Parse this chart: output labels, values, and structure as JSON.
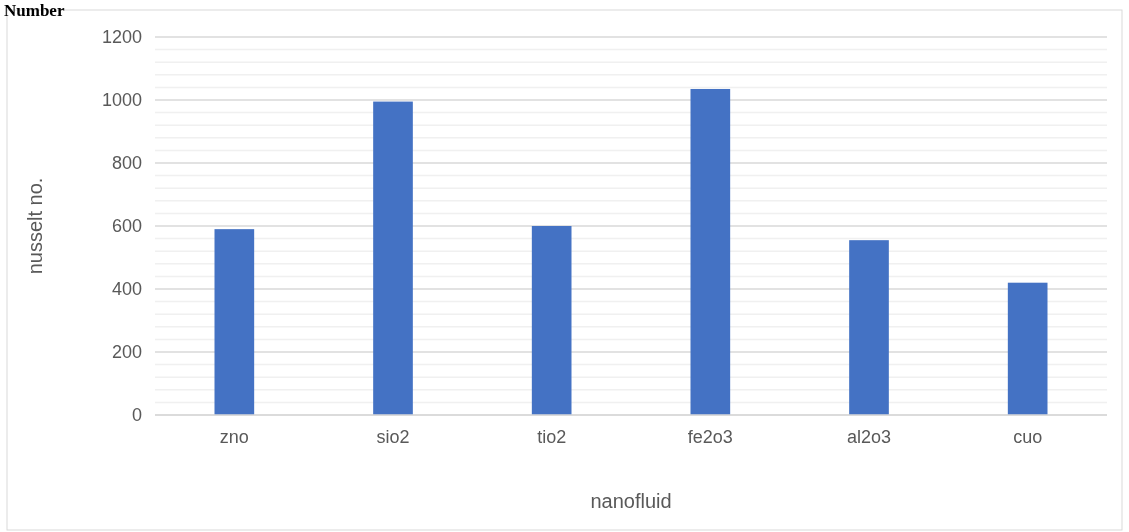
{
  "chart_data": {
    "type": "bar",
    "title": "Number",
    "xlabel": "nanofluid",
    "ylabel": "nusselt no.",
    "categories": [
      "zno",
      "sio2",
      "tio2",
      "fe2o3",
      "al2o3",
      "cuo"
    ],
    "values": [
      590,
      995,
      600,
      1035,
      555,
      420
    ],
    "color": "#4472c4",
    "ylim": [
      0,
      1200
    ],
    "yticks": [
      0,
      {
        "value": 40,
        "label": null
      },
      {
        "value": 80,
        "label": null
      },
      {
        "value": 120,
        "label": null
      },
      {
        "value": 160,
        "label": null
      },
      200,
      {
        "value": 240,
        "label": null
      },
      {
        "value": 280,
        "label": null
      },
      {
        "value": 320,
        "label": null
      },
      {
        "value": 360,
        "label": null
      },
      400,
      {
        "value": 440,
        "label": null
      },
      {
        "value": 480,
        "label": null
      },
      {
        "value": 520,
        "label": null
      },
      {
        "value": 560,
        "label": null
      },
      600,
      {
        "value": 640,
        "label": null
      },
      {
        "value": 680,
        "label": null
      },
      {
        "value": 720,
        "label": null
      },
      {
        "value": 760,
        "label": null
      },
      800,
      {
        "value": 840,
        "label": null
      },
      {
        "value": 880,
        "label": null
      },
      {
        "value": 920,
        "label": null
      },
      {
        "value": 960,
        "label": null
      },
      1000,
      {
        "value": 1040,
        "label": null
      },
      {
        "value": 1080,
        "label": null
      },
      {
        "value": 1120,
        "label": null
      },
      {
        "value": 1160,
        "label": null
      },
      1200
    ],
    "grid": true
  }
}
